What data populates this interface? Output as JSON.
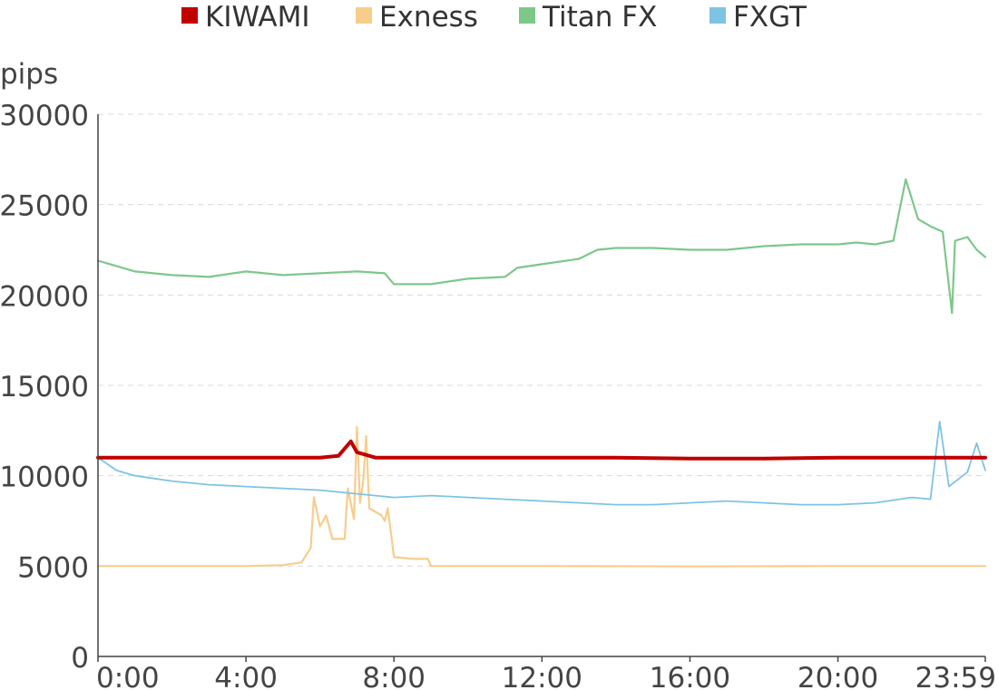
{
  "chart_data": {
    "type": "line",
    "ylabel": "pips",
    "xlabel": "",
    "ylim": [
      0,
      30000
    ],
    "y_ticks": [
      0,
      5000,
      10000,
      15000,
      20000,
      25000,
      30000
    ],
    "y_tick_labels": [
      "0",
      "5000",
      "10000",
      "15000",
      "20000",
      "25000",
      "30000"
    ],
    "x_range": [
      "0:00",
      "23:59"
    ],
    "x_tick_labels": [
      "0:00",
      "4:00",
      "8:00",
      "12:00",
      "16:00",
      "20:00",
      "23:59"
    ],
    "grid": "horizontal dashed",
    "legend_position": "top",
    "series": [
      {
        "name": "KIWAMI",
        "color": "#c00000",
        "points": [
          [
            "0:00",
            11000
          ],
          [
            "2:00",
            11000
          ],
          [
            "4:00",
            11000
          ],
          [
            "6:00",
            11000
          ],
          [
            "6:30",
            11100
          ],
          [
            "6:50",
            11900
          ],
          [
            "7:00",
            11300
          ],
          [
            "7:30",
            11000
          ],
          [
            "10:00",
            11000
          ],
          [
            "12:00",
            11000
          ],
          [
            "14:00",
            11000
          ],
          [
            "16:00",
            10950
          ],
          [
            "17:00",
            10950
          ],
          [
            "18:00",
            10950
          ],
          [
            "20:00",
            11000
          ],
          [
            "22:00",
            11000
          ],
          [
            "23:59",
            11000
          ]
        ]
      },
      {
        "name": "Exness",
        "color": "#f7cd8c",
        "points": [
          [
            "0:00",
            5000
          ],
          [
            "2:00",
            5000
          ],
          [
            "4:00",
            5000
          ],
          [
            "5:00",
            5050
          ],
          [
            "5:30",
            5200
          ],
          [
            "5:45",
            6000
          ],
          [
            "5:50",
            8800
          ],
          [
            "6:00",
            7200
          ],
          [
            "6:10",
            7800
          ],
          [
            "6:20",
            6500
          ],
          [
            "6:40",
            6500
          ],
          [
            "6:45",
            9300
          ],
          [
            "6:55",
            7600
          ],
          [
            "7:00",
            12700
          ],
          [
            "7:05",
            8500
          ],
          [
            "7:10",
            9600
          ],
          [
            "7:15",
            12200
          ],
          [
            "7:20",
            8200
          ],
          [
            "7:40",
            7800
          ],
          [
            "7:45",
            7500
          ],
          [
            "7:50",
            8200
          ],
          [
            "8:00",
            5500
          ],
          [
            "8:30",
            5400
          ],
          [
            "8:55",
            5400
          ],
          [
            "9:00",
            5000
          ],
          [
            "12:00",
            5000
          ],
          [
            "16:00",
            4980
          ],
          [
            "20:00",
            5000
          ],
          [
            "23:00",
            5000
          ],
          [
            "23:59",
            5000
          ]
        ]
      },
      {
        "name": "Titan FX",
        "color": "#7dc78b",
        "points": [
          [
            "0:00",
            21900
          ],
          [
            "1:00",
            21300
          ],
          [
            "2:00",
            21100
          ],
          [
            "3:00",
            21000
          ],
          [
            "4:00",
            21300
          ],
          [
            "5:00",
            21100
          ],
          [
            "6:00",
            21200
          ],
          [
            "7:00",
            21300
          ],
          [
            "7:45",
            21200
          ],
          [
            "8:00",
            20600
          ],
          [
            "9:00",
            20600
          ],
          [
            "10:00",
            20900
          ],
          [
            "11:00",
            21000
          ],
          [
            "11:20",
            21500
          ],
          [
            "12:00",
            21700
          ],
          [
            "13:00",
            22000
          ],
          [
            "13:30",
            22500
          ],
          [
            "14:00",
            22600
          ],
          [
            "15:00",
            22600
          ],
          [
            "16:00",
            22500
          ],
          [
            "17:00",
            22500
          ],
          [
            "18:00",
            22700
          ],
          [
            "19:00",
            22800
          ],
          [
            "20:00",
            22800
          ],
          [
            "20:30",
            22900
          ],
          [
            "21:00",
            22800
          ],
          [
            "21:30",
            23000
          ],
          [
            "21:50",
            26400
          ],
          [
            "22:10",
            24200
          ],
          [
            "22:30",
            23800
          ],
          [
            "22:50",
            23500
          ],
          [
            "23:05",
            19000
          ],
          [
            "23:10",
            23000
          ],
          [
            "23:30",
            23200
          ],
          [
            "23:45",
            22500
          ],
          [
            "23:59",
            22100
          ]
        ]
      },
      {
        "name": "FXGT",
        "color": "#7fc3e4",
        "points": [
          [
            "0:00",
            11000
          ],
          [
            "0:30",
            10300
          ],
          [
            "1:00",
            10000
          ],
          [
            "2:00",
            9700
          ],
          [
            "3:00",
            9500
          ],
          [
            "4:00",
            9400
          ],
          [
            "5:00",
            9300
          ],
          [
            "6:00",
            9200
          ],
          [
            "7:00",
            9000
          ],
          [
            "8:00",
            8800
          ],
          [
            "9:00",
            8900
          ],
          [
            "10:00",
            8800
          ],
          [
            "11:00",
            8700
          ],
          [
            "12:00",
            8600
          ],
          [
            "13:00",
            8500
          ],
          [
            "14:00",
            8400
          ],
          [
            "15:00",
            8400
          ],
          [
            "16:00",
            8500
          ],
          [
            "17:00",
            8600
          ],
          [
            "18:00",
            8500
          ],
          [
            "19:00",
            8400
          ],
          [
            "20:00",
            8400
          ],
          [
            "21:00",
            8500
          ],
          [
            "22:00",
            8800
          ],
          [
            "22:30",
            8700
          ],
          [
            "22:45",
            13000
          ],
          [
            "23:00",
            9400
          ],
          [
            "23:30",
            10200
          ],
          [
            "23:45",
            11800
          ],
          [
            "23:59",
            10300
          ]
        ]
      }
    ]
  }
}
